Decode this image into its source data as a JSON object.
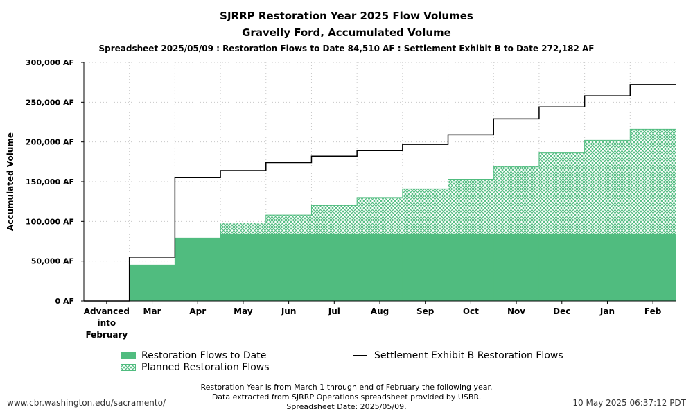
{
  "title": "SJRRP Restoration Year 2025 Flow Volumes",
  "subtitle": "Gravelly Ford, Accumulated Volume",
  "subtitle2": "Spreadsheet 2025/05/09 : Restoration Flows to Date 84,510 AF : Settlement Exhibit B to Date 272,182 AF",
  "footer": {
    "lines": [
      "Restoration Year is from March 1 through end of February the following year.",
      "Data extracted from SJRRP Operations spreadsheet provided by USBR.",
      "Spreadsheet Date: 2025/05/09."
    ],
    "url": "www.cbr.washington.edu/sacramento/",
    "timestamp": "10 May 2025 06:37:12 PDT"
  },
  "colors": {
    "restoration": "#50bc7f",
    "hatch": "#50bc7f",
    "exhibit_line": "#000000"
  },
  "chart_data": {
    "type": "area",
    "categories": [
      "Advanced into February",
      "Mar",
      "Apr",
      "May",
      "Jun",
      "Jul",
      "Aug",
      "Sep",
      "Oct",
      "Nov",
      "Dec",
      "Jan",
      "Feb"
    ],
    "category_labels": [
      [
        "Advanced",
        "into",
        "February"
      ],
      [
        "Mar"
      ],
      [
        "Apr"
      ],
      [
        "May"
      ],
      [
        "Jun"
      ],
      [
        "Jul"
      ],
      [
        "Aug"
      ],
      [
        "Sep"
      ],
      [
        "Oct"
      ],
      [
        "Nov"
      ],
      [
        "Dec"
      ],
      [
        "Jan"
      ],
      [
        "Feb"
      ]
    ],
    "ylabel": "Accumulated Volume",
    "xlabel": "",
    "ylim": [
      0,
      300000
    ],
    "yticks": [
      0,
      50000,
      100000,
      150000,
      200000,
      250000,
      300000
    ],
    "ytick_labels": [
      "0 AF",
      "50,000 AF",
      "100,000 AF",
      "150,000 AF",
      "200,000 AF",
      "250,000 AF",
      "300,000 AF"
    ],
    "grid": true,
    "legend_position": "bottom",
    "series": [
      {
        "name": "Restoration Flows to Date",
        "style": "solid-step",
        "values": [
          0,
          45000,
          79000,
          84510,
          84510,
          84510,
          84510,
          84510,
          84510,
          84510,
          84510,
          84510,
          84510
        ]
      },
      {
        "name": "Planned Restoration Flows",
        "style": "hatched-step",
        "values": [
          0,
          45000,
          79000,
          98000,
          108000,
          120000,
          130000,
          141000,
          153000,
          169000,
          187000,
          202000,
          216000
        ]
      },
      {
        "name": "Settlement Exhibit B Restoration Flows",
        "style": "line-step",
        "values": [
          0,
          55000,
          155000,
          164000,
          174000,
          182000,
          189000,
          197000,
          209000,
          229000,
          244000,
          258000,
          272182
        ]
      }
    ]
  }
}
